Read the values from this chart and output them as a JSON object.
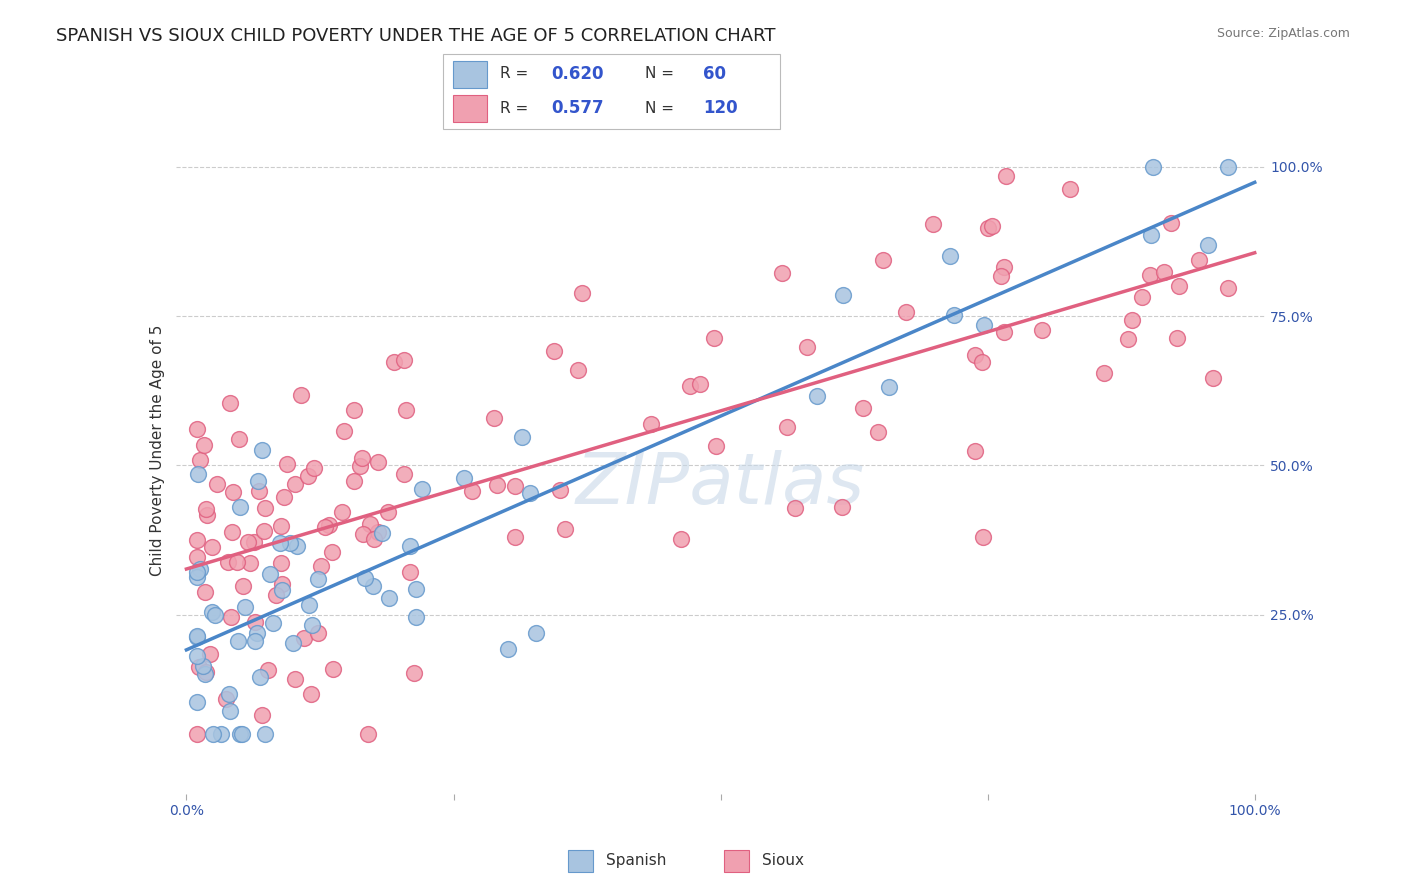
{
  "title": "SPANISH VS SIOUX CHILD POVERTY UNDER THE AGE OF 5 CORRELATION CHART",
  "source_text": "Source: ZipAtlas.com",
  "ylabel": "Child Poverty Under the Age of 5",
  "title_fontsize": 13,
  "axis_label_fontsize": 11,
  "tick_fontsize": 10,
  "spanish_color": "#a8c4e0",
  "sioux_color": "#f0a0b0",
  "spanish_edge_color": "#6699cc",
  "sioux_edge_color": "#e06080",
  "spanish_line_color": "#4a86c8",
  "sioux_line_color": "#e06080",
  "background_color": "#ffffff",
  "grid_color": "#cccccc",
  "legend_R_spanish": "0.620",
  "legend_N_spanish": "60",
  "legend_R_sioux": "0.577",
  "legend_N_sioux": "120",
  "watermark": "ZIPatlas",
  "watermark_color": "#c8d8e8",
  "tick_color": "#3355aa"
}
